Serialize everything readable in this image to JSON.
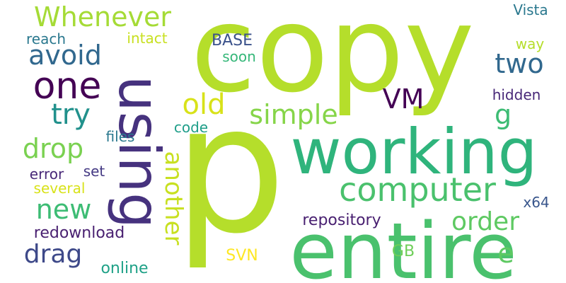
{
  "words": [
    {
      "text": "copy",
      "color": "#b5de2b",
      "vertical": false
    },
    {
      "text": "p",
      "color": "#b5de2b",
      "vertical": false
    },
    {
      "text": "entire",
      "color": "#4ac16d",
      "vertical": false
    },
    {
      "text": "working",
      "color": "#2fb47c",
      "vertical": false
    },
    {
      "text": "using",
      "color": "#46327e",
      "vertical": true
    },
    {
      "text": "computer",
      "color": "#4ac16d",
      "vertical": false
    },
    {
      "text": "Whenever",
      "color": "#a5db36",
      "vertical": false
    },
    {
      "text": "one",
      "color": "#440154",
      "vertical": false
    },
    {
      "text": "avoid",
      "color": "#31688e",
      "vertical": false
    },
    {
      "text": "try",
      "color": "#21918c",
      "vertical": false
    },
    {
      "text": "drop",
      "color": "#7ad151",
      "vertical": false
    },
    {
      "text": "new",
      "color": "#3dbc74",
      "vertical": false
    },
    {
      "text": "drag",
      "color": "#3e4989",
      "vertical": false
    },
    {
      "text": "another",
      "color": "#c8e020",
      "vertical": true
    },
    {
      "text": "simple",
      "color": "#86d549",
      "vertical": false
    },
    {
      "text": "old",
      "color": "#d8e219",
      "vertical": false
    },
    {
      "text": "two",
      "color": "#31688e",
      "vertical": false
    },
    {
      "text": "VM",
      "color": "#440154",
      "vertical": false
    },
    {
      "text": "order",
      "color": "#5ec962",
      "vertical": false
    },
    {
      "text": "g",
      "color": "#3dbc74",
      "vertical": false
    },
    {
      "text": "e",
      "color": "#5ec962",
      "vertical": false
    },
    {
      "text": "Vista",
      "color": "#2a788e",
      "vertical": false
    },
    {
      "text": "way",
      "color": "#b5de2b",
      "vertical": false
    },
    {
      "text": "hidden",
      "color": "#482878",
      "vertical": false
    },
    {
      "text": "x64",
      "color": "#39568c",
      "vertical": false
    },
    {
      "text": "reach",
      "color": "#2a788e",
      "vertical": false
    },
    {
      "text": "intact",
      "color": "#c8e020",
      "vertical": false
    },
    {
      "text": "BASE",
      "color": "#3b528b",
      "vertical": false
    },
    {
      "text": "soon",
      "color": "#35b779",
      "vertical": false
    },
    {
      "text": "files",
      "color": "#2a788e",
      "vertical": false
    },
    {
      "text": "code",
      "color": "#1f9e89",
      "vertical": false
    },
    {
      "text": "set",
      "color": "#443983",
      "vertical": false
    },
    {
      "text": "error",
      "color": "#482878",
      "vertical": false
    },
    {
      "text": "several",
      "color": "#d8e219",
      "vertical": false
    },
    {
      "text": "redownload",
      "color": "#481f70",
      "vertical": false
    },
    {
      "text": "repository",
      "color": "#481f70",
      "vertical": false
    },
    {
      "text": "SVN",
      "color": "#fde725",
      "vertical": false
    },
    {
      "text": "GB",
      "color": "#6ece58",
      "vertical": false
    },
    {
      "text": "online",
      "color": "#1fa187",
      "vertical": false
    }
  ]
}
